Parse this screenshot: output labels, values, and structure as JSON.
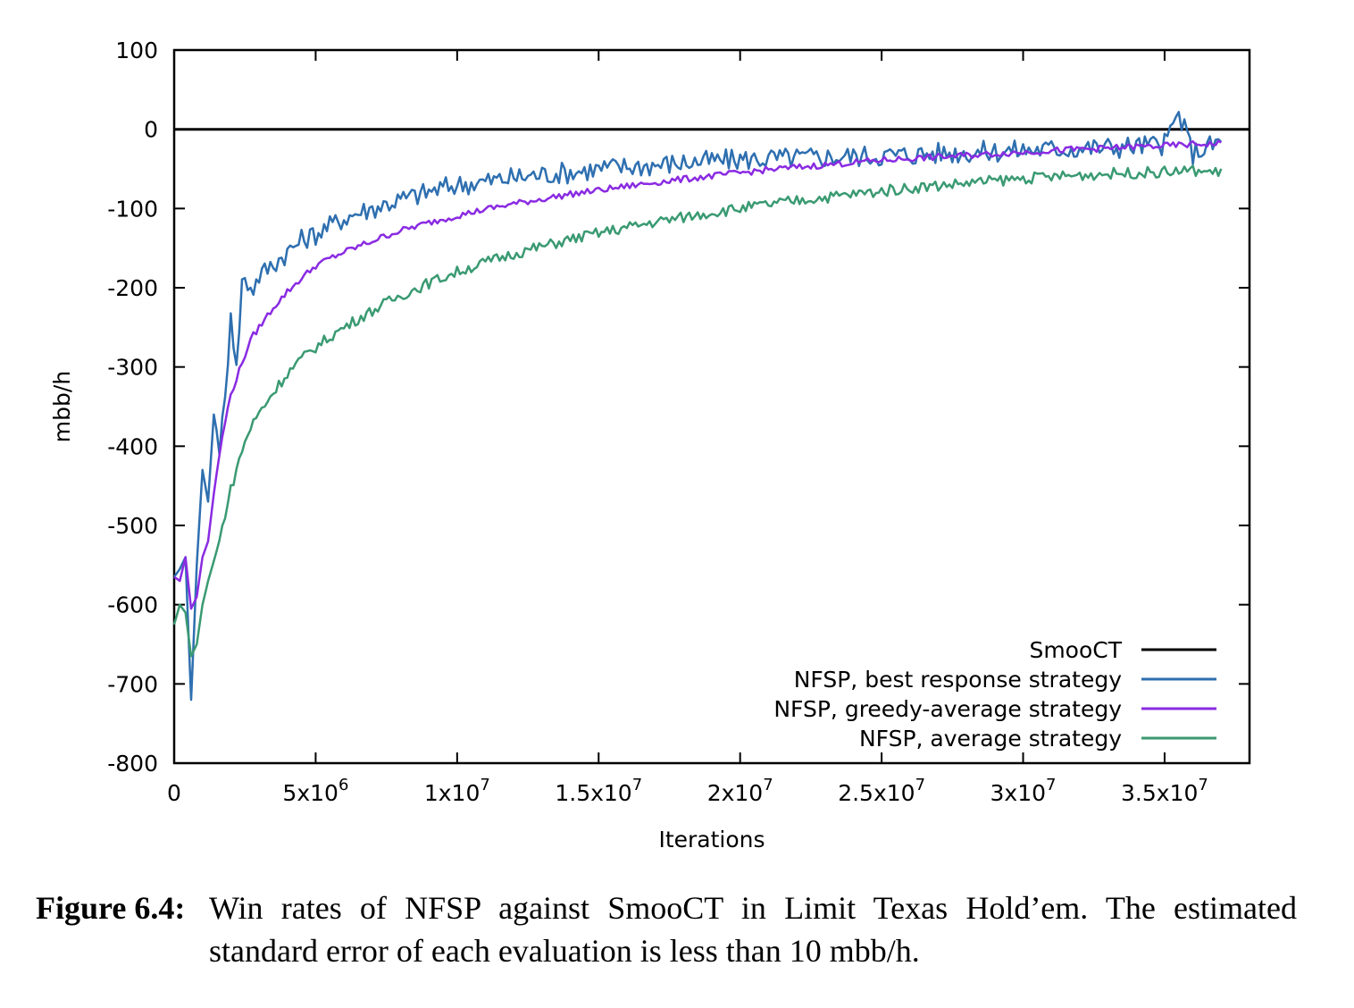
{
  "chart_data": {
    "type": "line",
    "title": "",
    "xlabel": "Iterations",
    "ylabel": "mbb/h",
    "xlim": [
      0,
      38000000
    ],
    "ylim": [
      -800,
      100
    ],
    "x_ticks": [
      {
        "value": 0,
        "base": "0",
        "exp": ""
      },
      {
        "value": 5000000,
        "base": "5x10",
        "exp": "6"
      },
      {
        "value": 10000000,
        "base": "1x10",
        "exp": "7"
      },
      {
        "value": 15000000,
        "base": "1.5x10",
        "exp": "7"
      },
      {
        "value": 20000000,
        "base": "2x10",
        "exp": "7"
      },
      {
        "value": 25000000,
        "base": "2.5x10",
        "exp": "7"
      },
      {
        "value": 30000000,
        "base": "3x10",
        "exp": "7"
      },
      {
        "value": 35000000,
        "base": "3.5x10",
        "exp": "7"
      }
    ],
    "y_ticks": [
      100,
      0,
      -100,
      -200,
      -300,
      -400,
      -500,
      -600,
      -700,
      -800
    ],
    "y_tick_labels": [
      "100",
      "0",
      "-100",
      "-200",
      "-300",
      "-400",
      "-500",
      "-600",
      "-700",
      "-800"
    ],
    "grid": false,
    "legend_position": "bottom-right",
    "series": [
      {
        "name": "SmooCT",
        "color": "#000000",
        "x": [
          0,
          38000000
        ],
        "y": [
          0,
          0
        ]
      },
      {
        "name": "NFSP, best response strategy",
        "color": "#2e6fb0",
        "x": [
          0,
          200000,
          400000,
          600000,
          800000,
          1000000,
          1200000,
          1400000,
          1600000,
          1800000,
          2000000,
          2200000,
          2400000,
          2600000,
          2800000,
          3000000,
          3500000,
          4000000,
          4500000,
          5000000,
          5500000,
          6000000,
          6500000,
          7000000,
          7500000,
          8000000,
          8500000,
          9000000,
          9500000,
          10000000,
          11000000,
          12000000,
          13000000,
          14000000,
          15000000,
          16000000,
          17000000,
          18000000,
          19000000,
          20000000,
          21000000,
          22000000,
          23000000,
          24000000,
          25000000,
          26000000,
          27000000,
          28000000,
          29000000,
          30000000,
          31000000,
          32000000,
          33000000,
          34000000,
          35000000,
          35500000,
          36000000,
          37000000
        ],
        "y": [
          -565,
          -555,
          -540,
          -720,
          -550,
          -430,
          -470,
          -360,
          -400,
          -345,
          -225,
          -305,
          -190,
          -195,
          -200,
          -185,
          -170,
          -155,
          -140,
          -132,
          -122,
          -112,
          -105,
          -100,
          -94,
          -89,
          -84,
          -79,
          -74,
          -70,
          -66,
          -61,
          -57,
          -54,
          -50,
          -47,
          -45,
          -42,
          -40,
          -38,
          -37,
          -36,
          -35,
          -34,
          -33,
          -32,
          -30,
          -29,
          -28,
          -26,
          -25,
          -24,
          -23,
          -21,
          -19,
          20,
          -30,
          -15
        ]
      },
      {
        "name": "NFSP, greedy-average strategy",
        "color": "#8a2be2",
        "x": [
          0,
          200000,
          400000,
          600000,
          800000,
          1000000,
          1200000,
          1400000,
          1600000,
          1800000,
          2000000,
          2200000,
          2400000,
          2600000,
          2800000,
          3000000,
          3500000,
          4000000,
          4500000,
          5000000,
          5500000,
          6000000,
          6500000,
          7000000,
          7500000,
          8000000,
          9000000,
          10000000,
          11000000,
          12000000,
          13000000,
          14000000,
          15000000,
          16000000,
          17000000,
          18000000,
          19000000,
          20000000,
          21000000,
          22000000,
          23000000,
          24000000,
          25000000,
          26000000,
          27000000,
          28000000,
          29000000,
          30000000,
          31000000,
          32000000,
          33000000,
          34000000,
          35000000,
          36000000,
          37000000
        ],
        "y": [
          -565,
          -570,
          -540,
          -605,
          -590,
          -540,
          -520,
          -460,
          -410,
          -370,
          -335,
          -315,
          -295,
          -275,
          -260,
          -250,
          -225,
          -205,
          -188,
          -172,
          -163,
          -155,
          -148,
          -141,
          -134,
          -128,
          -118,
          -109,
          -101,
          -94,
          -88,
          -82,
          -77,
          -72,
          -67,
          -63,
          -59,
          -55,
          -51,
          -48,
          -45,
          -42,
          -39,
          -37,
          -35,
          -33,
          -31,
          -29,
          -27,
          -25,
          -24,
          -22,
          -21,
          -19,
          -18
        ]
      },
      {
        "name": "NFSP, average strategy",
        "color": "#3a9a72",
        "x": [
          0,
          200000,
          400000,
          600000,
          800000,
          1000000,
          1200000,
          1400000,
          1600000,
          1800000,
          2000000,
          2200000,
          2400000,
          2600000,
          2800000,
          3000000,
          3500000,
          4000000,
          4500000,
          5000000,
          5500000,
          6000000,
          6500000,
          7000000,
          7500000,
          8000000,
          9000000,
          10000000,
          11000000,
          12000000,
          13000000,
          14000000,
          15000000,
          16000000,
          17000000,
          18000000,
          19000000,
          20000000,
          21000000,
          22000000,
          23000000,
          24000000,
          25000000,
          26000000,
          27000000,
          28000000,
          29000000,
          30000000,
          31000000,
          32000000,
          33000000,
          34000000,
          35000000,
          36000000,
          37000000
        ],
        "y": [
          -625,
          -600,
          -610,
          -665,
          -650,
          -600,
          -570,
          -545,
          -520,
          -485,
          -455,
          -430,
          -405,
          -385,
          -370,
          -358,
          -332,
          -308,
          -290,
          -275,
          -262,
          -250,
          -239,
          -229,
          -219,
          -210,
          -194,
          -180,
          -168,
          -157,
          -148,
          -139,
          -131,
          -124,
          -117,
          -111,
          -105,
          -100,
          -95,
          -90,
          -86,
          -82,
          -78,
          -74,
          -71,
          -68,
          -65,
          -62,
          -60,
          -58,
          -56,
          -55,
          -54,
          -52,
          -55
        ]
      }
    ]
  },
  "caption": {
    "label": "Figure 6.4:",
    "text": "Win rates of NFSP against SmooCT in Limit Texas Hold’em. The estimated standard error of each evaluation is less than 10 mbb/h."
  }
}
